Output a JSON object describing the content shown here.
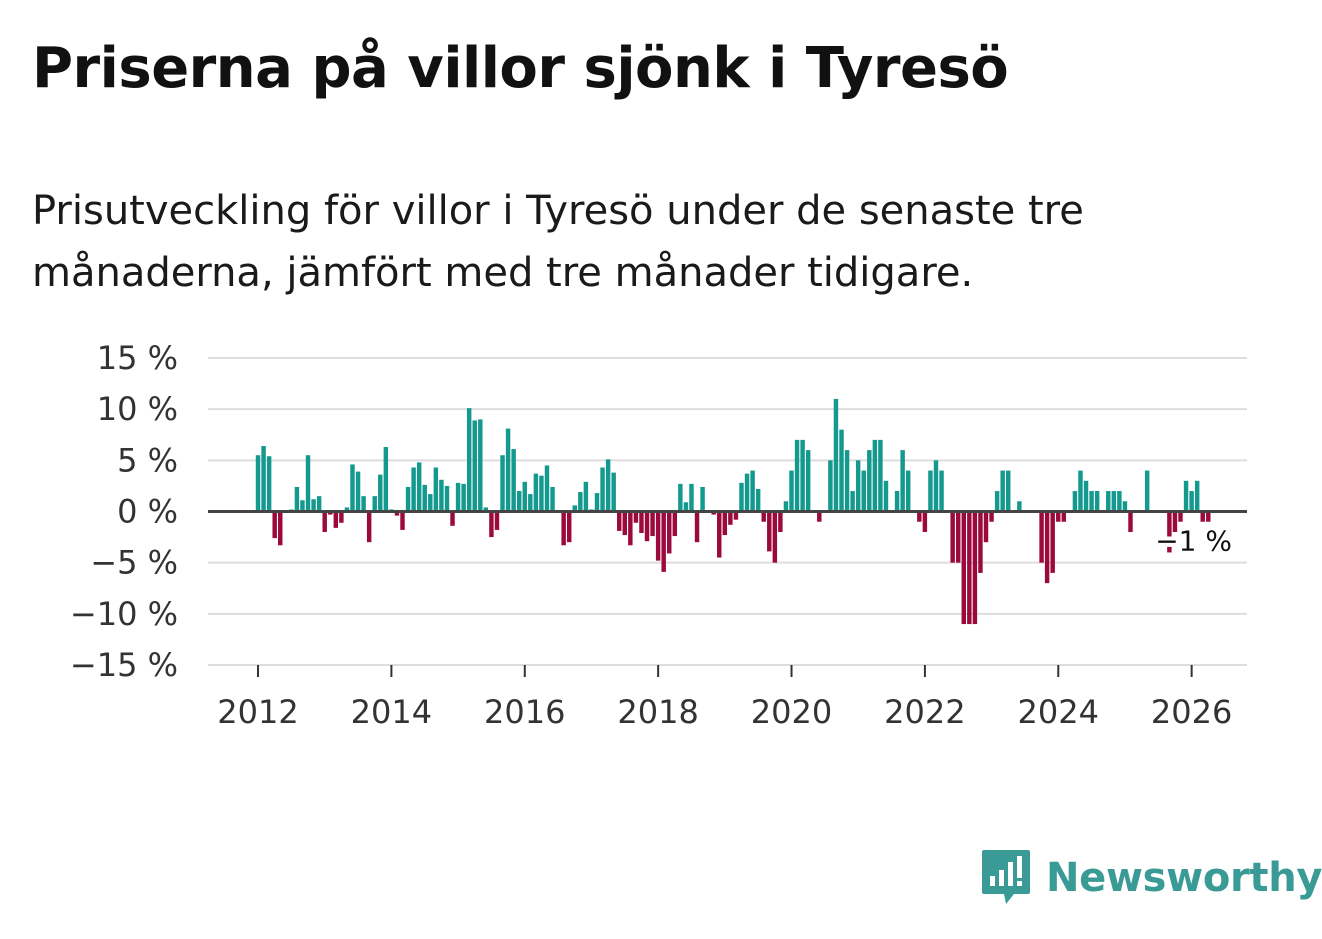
{
  "title": "Priserna på villor sjönk i Tyresö",
  "subtitle": "Prisutveckling för villor i Tyresö under de senaste tre månaderna, jämfört med tre månader tidigare.",
  "brand": "Newsworthy",
  "colors": {
    "positive": "#14998f",
    "negative": "#9c0a3d",
    "grid": "#dddddd",
    "zero": "#444444",
    "brand": "#3a9a96"
  },
  "chart_data": {
    "type": "bar",
    "title": "Priserna på villor sjönk i Tyresö",
    "xlabel": "",
    "ylabel": "",
    "ylim": [
      -15,
      15
    ],
    "y_ticks": [
      15,
      10,
      5,
      0,
      -5,
      -10,
      -15
    ],
    "y_tick_labels": [
      "15 %",
      "10 %",
      "5 %",
      "0 %",
      "−5 %",
      "−10 %",
      "−15 %"
    ],
    "x_ticks": [
      2012,
      2014,
      2016,
      2018,
      2020,
      2022,
      2024,
      2026
    ],
    "x_tick_labels": [
      "2012",
      "2014",
      "2016",
      "2018",
      "2020",
      "2022",
      "2024",
      "2026"
    ],
    "x_range": [
      2011.25,
      2026.83
    ],
    "start": 2012.0,
    "step": 0.08333,
    "last_value_label": "−1 %",
    "values": [
      5.5,
      6.4,
      5.4,
      -2.6,
      -3.3,
      0.1,
      0.2,
      2.4,
      1.1,
      5.5,
      1.2,
      1.5,
      -2.0,
      -0.3,
      -1.6,
      -1.1,
      0.4,
      4.6,
      3.9,
      1.5,
      -3.0,
      1.5,
      3.6,
      6.3,
      0.2,
      -0.4,
      -1.8,
      2.4,
      4.3,
      4.8,
      2.6,
      1.7,
      4.3,
      3.1,
      2.5,
      -1.4,
      2.8,
      2.7,
      10.1,
      8.9,
      9.0,
      0.4,
      -2.5,
      -1.8,
      5.5,
      8.1,
      6.1,
      2.0,
      2.9,
      1.7,
      3.7,
      3.5,
      4.5,
      2.4,
      0.1,
      -3.3,
      -3.0,
      0.6,
      1.9,
      2.9,
      0.2,
      1.8,
      4.3,
      5.1,
      3.8,
      -1.9,
      -2.3,
      -3.3,
      -1.1,
      -2.1,
      -2.9,
      -2.4,
      -4.8,
      -5.9,
      -4.1,
      -2.4,
      2.7,
      0.9,
      2.7,
      -3.0,
      2.4,
      0.0,
      -0.3,
      -4.5,
      -2.3,
      -1.3,
      -0.8,
      2.8,
      3.7,
      4.0,
      2.2,
      -1.0,
      -3.9,
      -5.0,
      -2.0,
      1.0,
      4.0,
      7.0,
      7.0,
      6.0,
      0.0,
      -1.0,
      0.0,
      5.0,
      11.0,
      8.0,
      6.0,
      2.0,
      5.0,
      4.0,
      6.0,
      7.0,
      7.0,
      3.0,
      0.0,
      2.0,
      6.0,
      4.0,
      0.0,
      -1.0,
      -2.0,
      4.0,
      5.0,
      4.0,
      0.0,
      -5.0,
      -5.0,
      -11.0,
      -11.0,
      -11.0,
      -6.0,
      -3.0,
      -1.0,
      2.0,
      4.0,
      4.0,
      0.0,
      1.0,
      0.0,
      0.0,
      0.0,
      -5.0,
      -7.0,
      -6.0,
      -1.0,
      -1.0,
      0.0,
      2.0,
      4.0,
      3.0,
      2.0,
      2.0,
      0.0,
      2.0,
      2.0,
      2.0,
      1.0,
      -2.0,
      0.0,
      0.0,
      4.0,
      0.0,
      0.0,
      0.0,
      -4.0,
      -2.0,
      -1.0,
      3.0,
      2.0,
      3.0,
      -1.0,
      -1.0
    ]
  }
}
